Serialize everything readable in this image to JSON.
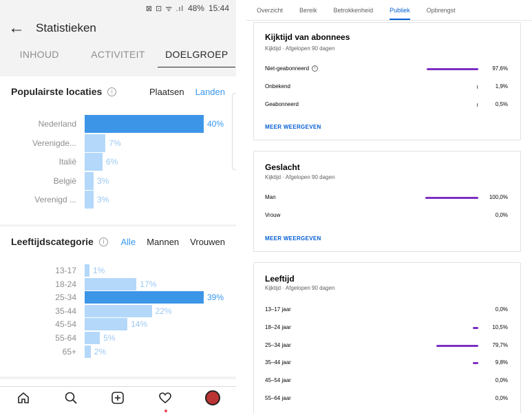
{
  "status_bar": {
    "icons": "⊠ ⊡ ᯤ .ıl",
    "battery": "48%",
    "time": "15:44"
  },
  "app": {
    "back_icon": "arrow-left-icon",
    "title": "Statistieken"
  },
  "tabs": [
    {
      "label": "INHOUD",
      "active": false
    },
    {
      "label": "ACTIVITEIT",
      "active": false
    },
    {
      "label": "DOELGROEP",
      "active": true
    }
  ],
  "locations": {
    "title": "Populairste locaties",
    "options": [
      {
        "label": "Plaatsen",
        "selected": false
      },
      {
        "label": "Landen",
        "selected": true
      }
    ]
  },
  "age": {
    "title": "Leeftijdscategorie",
    "options": [
      {
        "label": "Alle",
        "selected": true
      },
      {
        "label": "Mannen",
        "selected": false
      },
      {
        "label": "Vrouwen",
        "selected": false
      }
    ]
  },
  "chart_data": [
    {
      "type": "bar",
      "title": "Populairste locaties",
      "categories": [
        "Nederland",
        "Verenigde...",
        "Italië",
        "België",
        "Verenigd ..."
      ],
      "values": [
        40,
        7,
        6,
        3,
        3
      ],
      "labels": [
        "40%",
        "7%",
        "6%",
        "3%",
        "3%"
      ],
      "unit": "%"
    },
    {
      "type": "bar",
      "title": "Leeftijdscategorie",
      "categories": [
        "13-17",
        "18-24",
        "25-34",
        "35-44",
        "45-54",
        "55-64",
        "65+"
      ],
      "values": [
        1,
        17,
        39,
        22,
        14,
        5,
        2
      ],
      "labels": [
        "1%",
        "17%",
        "39%",
        "22%",
        "14%",
        "5%",
        "2%"
      ],
      "unit": "%"
    }
  ],
  "nav": [
    "home-icon",
    "search-icon",
    "add-post-icon",
    "heart-icon",
    "profile-avatar"
  ],
  "yt": {
    "tabs": [
      {
        "label": "Overzicht",
        "active": false
      },
      {
        "label": "Bereik",
        "active": false
      },
      {
        "label": "Betrokkenheid",
        "active": false
      },
      {
        "label": "Publiek",
        "active": true
      },
      {
        "label": "Opbrengst",
        "active": false
      }
    ],
    "subscriber_card": {
      "title": "Kijktijd van abonnees",
      "subtitle": "Kijktijd · Afgelopen 90 dagen",
      "rows": [
        {
          "label": "Niet-geabonneerd",
          "value": 97.6,
          "text": "97,6%",
          "info": true
        },
        {
          "label": "Onbekend",
          "value": 1.9,
          "text": "1,9%"
        },
        {
          "label": "Geabonneerd",
          "value": 0.5,
          "text": "0,5%"
        }
      ],
      "more": "MEER WEERGEVEN"
    },
    "gender_card": {
      "title": "Geslacht",
      "subtitle": "Kijktijd · Afgelopen 90 dagen",
      "rows": [
        {
          "label": "Man",
          "value": 100,
          "text": "100,0%"
        },
        {
          "label": "Vrouw",
          "value": 0,
          "text": "0,0%"
        }
      ],
      "more": "MEER WEERGEVEN"
    },
    "age_card": {
      "title": "Leeftijd",
      "subtitle": "Kijktijd · Afgelopen 90 dagen",
      "rows": [
        {
          "label": "13–17 jaar",
          "value": 0,
          "text": "0,0%"
        },
        {
          "label": "18–24 jaar",
          "value": 10.5,
          "text": "10,5%"
        },
        {
          "label": "25–34 jaar",
          "value": 79.7,
          "text": "79,7%"
        },
        {
          "label": "35–44 jaar",
          "value": 9.8,
          "text": "9,8%"
        },
        {
          "label": "45–54 jaar",
          "value": 0,
          "text": "0,0%"
        },
        {
          "label": "55–64 jaar",
          "value": 0,
          "text": "0,0%"
        }
      ]
    }
  }
}
